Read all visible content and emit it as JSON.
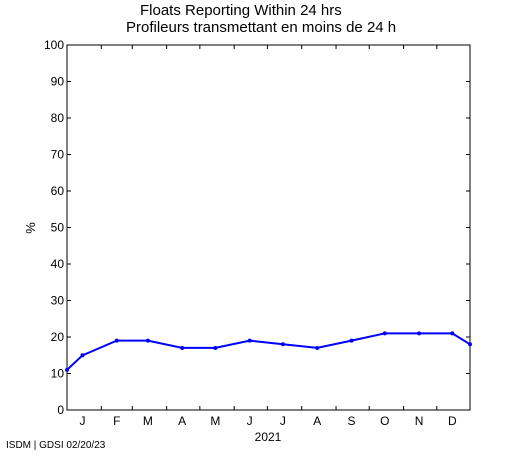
{
  "chart_data": {
    "type": "line",
    "title": "Floats Reporting Within 24 hrs",
    "subtitle": "Profileurs transmettant en moins de 24 h",
    "ylabel": "%",
    "xlabel": "2021",
    "ylim": [
      0,
      100
    ],
    "yticks": [
      0,
      10,
      20,
      30,
      40,
      50,
      60,
      70,
      80,
      90,
      100
    ],
    "xlim": [
      "2021-01-01",
      "2021-12-31"
    ],
    "month_labels": [
      "J",
      "F",
      "M",
      "A",
      "M",
      "J",
      "J",
      "A",
      "S",
      "O",
      "N",
      "D"
    ],
    "grid": false,
    "series": [
      {
        "color": "#0000ff",
        "x": [
          "2021-01-01",
          "2021-01-15",
          "2021-02-15",
          "2021-03-15",
          "2021-04-15",
          "2021-05-15",
          "2021-06-15",
          "2021-07-15",
          "2021-08-15",
          "2021-09-15",
          "2021-10-15",
          "2021-11-15",
          "2021-12-15",
          "2021-12-31"
        ],
        "values": [
          11,
          15,
          19,
          19,
          17,
          17,
          19,
          18,
          17,
          19,
          21,
          21,
          21,
          18
        ]
      }
    ]
  },
  "footer": "ISDM | GDSI 02/20/23"
}
